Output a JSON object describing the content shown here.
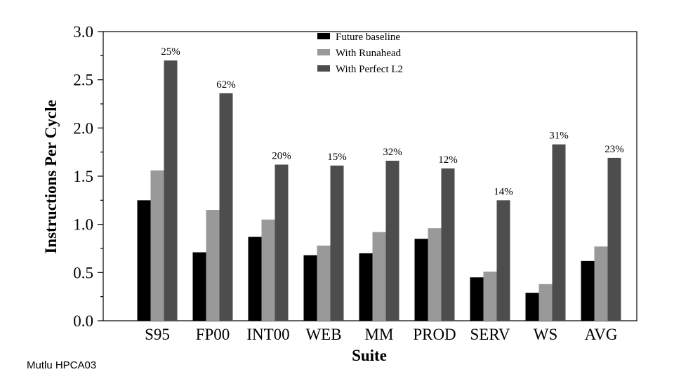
{
  "chart_data": {
    "type": "bar",
    "title": "",
    "xlabel": "Suite",
    "ylabel": "Instructions Per Cycle",
    "ylim": [
      0,
      3.0
    ],
    "yticks": [
      "0.0",
      "0.5",
      "1.0",
      "1.5",
      "2.0",
      "2.5",
      "3.0"
    ],
    "categories": [
      "S95",
      "FP00",
      "INT00",
      "WEB",
      "MM",
      "PROD",
      "SERV",
      "WS",
      "AVG"
    ],
    "series": [
      {
        "name": "Future baseline",
        "color": "#000000",
        "values": [
          1.25,
          0.71,
          0.87,
          0.68,
          0.7,
          0.85,
          0.45,
          0.29,
          0.62
        ]
      },
      {
        "name": "With Runahead",
        "color": "#999999",
        "values": [
          1.56,
          1.15,
          1.05,
          0.78,
          0.92,
          0.96,
          0.51,
          0.38,
          0.77
        ]
      },
      {
        "name": "With Perfect L2",
        "color": "#4d4d4d",
        "values": [
          2.7,
          2.36,
          1.62,
          1.61,
          1.66,
          1.58,
          1.25,
          1.83,
          1.69
        ]
      }
    ],
    "annotations": [
      "25%",
      "62%",
      "20%",
      "15%",
      "32%",
      "12%",
      "14%",
      "31%",
      "23%"
    ],
    "legend_position": "top-center",
    "grid": false
  },
  "footer": {
    "credit": "Mutlu HPCA03"
  }
}
